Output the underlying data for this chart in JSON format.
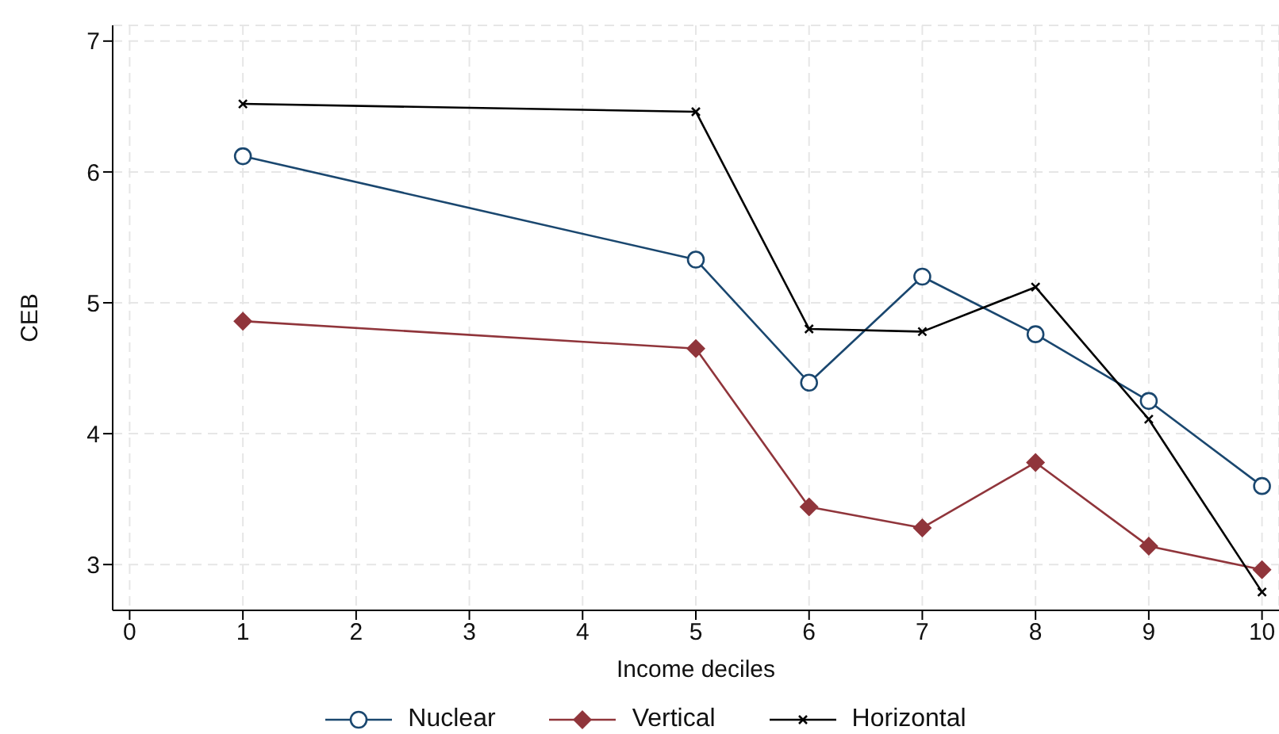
{
  "chart_data": {
    "type": "line",
    "xlabel": "Income deciles",
    "ylabel": "CEB",
    "x": [
      1,
      5,
      6,
      7,
      8,
      9,
      10
    ],
    "xlim": [
      -0.15,
      10.15
    ],
    "xticks": [
      0,
      1,
      2,
      3,
      4,
      5,
      6,
      7,
      8,
      9,
      10
    ],
    "ylim": [
      2.65,
      7.12
    ],
    "yticks": [
      3,
      4,
      5,
      6,
      7
    ],
    "grid": true,
    "legend": "bottom",
    "series": [
      {
        "name": "Nuclear",
        "color": "#1a476f",
        "marker": "circle",
        "values": [
          6.12,
          5.33,
          4.39,
          5.2,
          4.76,
          4.25,
          3.6
        ]
      },
      {
        "name": "Vertical",
        "color": "#90353b",
        "marker": "diamond",
        "values": [
          4.86,
          4.65,
          3.44,
          3.28,
          3.78,
          3.14,
          2.96
        ]
      },
      {
        "name": "Horizontal",
        "color": "#000000",
        "marker": "cross",
        "values": [
          6.52,
          6.46,
          4.8,
          4.78,
          5.12,
          4.11,
          2.79
        ]
      }
    ]
  }
}
